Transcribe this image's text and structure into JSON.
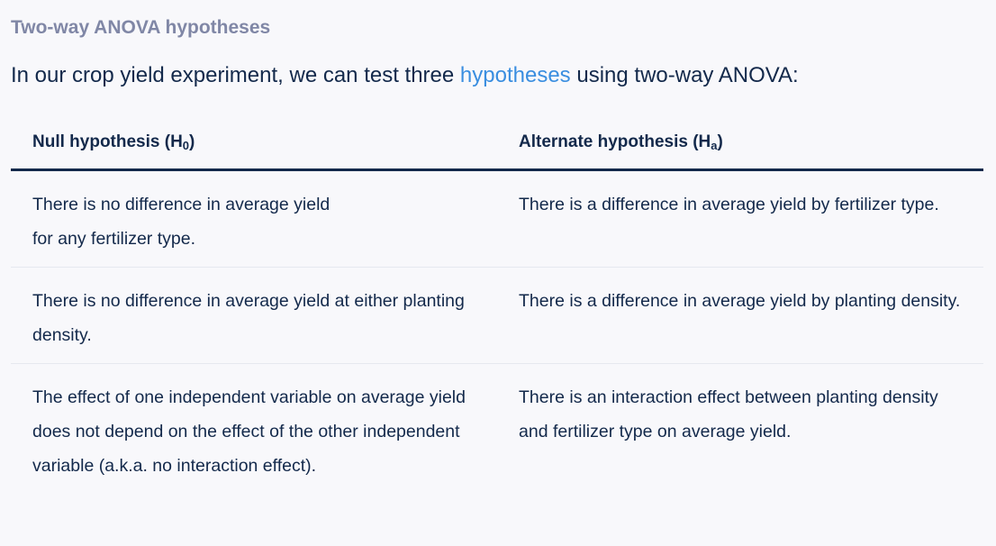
{
  "section_title": "Two-way ANOVA hypotheses",
  "intro": {
    "before_link": "In our crop yield experiment, we can test three ",
    "link_text": "hypotheses",
    "after_link": " using two-way ANOVA:"
  },
  "table": {
    "headers": {
      "null_label": "Null hypothesis (H",
      "null_sub": "0",
      "null_close": ")",
      "alt_label": "Alternate hypothesis (H",
      "alt_sub": "a",
      "alt_close": ")"
    },
    "rows": [
      {
        "null_line1": "There is no difference in average yield",
        "null_line2": "for any fertilizer type.",
        "alt": "There is a difference in average yield by fertilizer type."
      },
      {
        "null": "There is no difference in average yield at either planting density.",
        "alt": "There is a difference in average yield by planting density."
      },
      {
        "null": "The effect of one independent variable on average yield does not depend on the effect of the other independent variable (a.k.a. no interaction effect).",
        "alt": "There is an interaction effect between planting density and fertilizer type on average yield."
      }
    ]
  },
  "colors": {
    "text": "#13294b",
    "section_title": "#8087a6",
    "link": "#3a8ee0",
    "background": "#f8f8fb"
  }
}
